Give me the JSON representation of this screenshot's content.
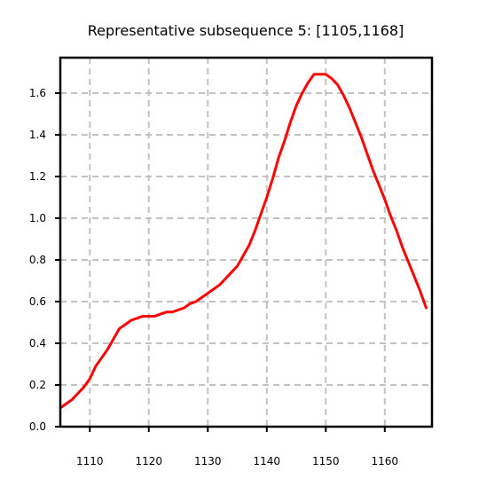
{
  "chart_data": {
    "type": "line",
    "title": "Representative subsequence 5: [1105,1168]",
    "xlabel": "",
    "ylabel": "",
    "xlim": [
      1105,
      1168
    ],
    "ylim": [
      0,
      1.77
    ],
    "grid": true,
    "xticks": [
      1110,
      1120,
      1130,
      1140,
      1150,
      1160
    ],
    "yticks": [
      0.0,
      0.2,
      0.4,
      0.6,
      0.8,
      1.0,
      1.2,
      1.4,
      1.6
    ],
    "x_tick_labels": [
      "1110",
      "1120",
      "1130",
      "1140",
      "1150",
      "1160"
    ],
    "y_tick_labels": [
      "0.0",
      "0.2",
      "0.4",
      "0.6",
      "0.8",
      "1.0",
      "1.2",
      "1.4",
      "1.6"
    ],
    "series": [
      {
        "color": "#ff0000",
        "x": [
          1105,
          1106,
          1107,
          1108,
          1109,
          1110,
          1111,
          1112,
          1113,
          1114,
          1115,
          1116,
          1117,
          1118,
          1119,
          1120,
          1121,
          1122,
          1123,
          1124,
          1125,
          1126,
          1127,
          1128,
          1129,
          1130,
          1131,
          1132,
          1133,
          1134,
          1135,
          1136,
          1137,
          1138,
          1139,
          1140,
          1141,
          1142,
          1143,
          1144,
          1145,
          1146,
          1147,
          1148,
          1149,
          1150,
          1151,
          1152,
          1153,
          1154,
          1155,
          1156,
          1157,
          1158,
          1159,
          1160,
          1161,
          1162,
          1163,
          1164,
          1165,
          1166,
          1167
        ],
        "y": [
          0.09,
          0.11,
          0.13,
          0.16,
          0.19,
          0.23,
          0.29,
          0.33,
          0.37,
          0.42,
          0.47,
          0.49,
          0.51,
          0.52,
          0.53,
          0.53,
          0.53,
          0.54,
          0.55,
          0.55,
          0.56,
          0.57,
          0.59,
          0.6,
          0.62,
          0.64,
          0.66,
          0.68,
          0.71,
          0.74,
          0.77,
          0.82,
          0.87,
          0.94,
          1.02,
          1.1,
          1.19,
          1.29,
          1.37,
          1.46,
          1.54,
          1.6,
          1.65,
          1.69,
          1.69,
          1.69,
          1.67,
          1.64,
          1.59,
          1.53,
          1.46,
          1.39,
          1.31,
          1.23,
          1.16,
          1.09,
          1.01,
          0.94,
          0.86,
          0.79,
          0.72,
          0.65,
          0.57
        ]
      }
    ]
  }
}
